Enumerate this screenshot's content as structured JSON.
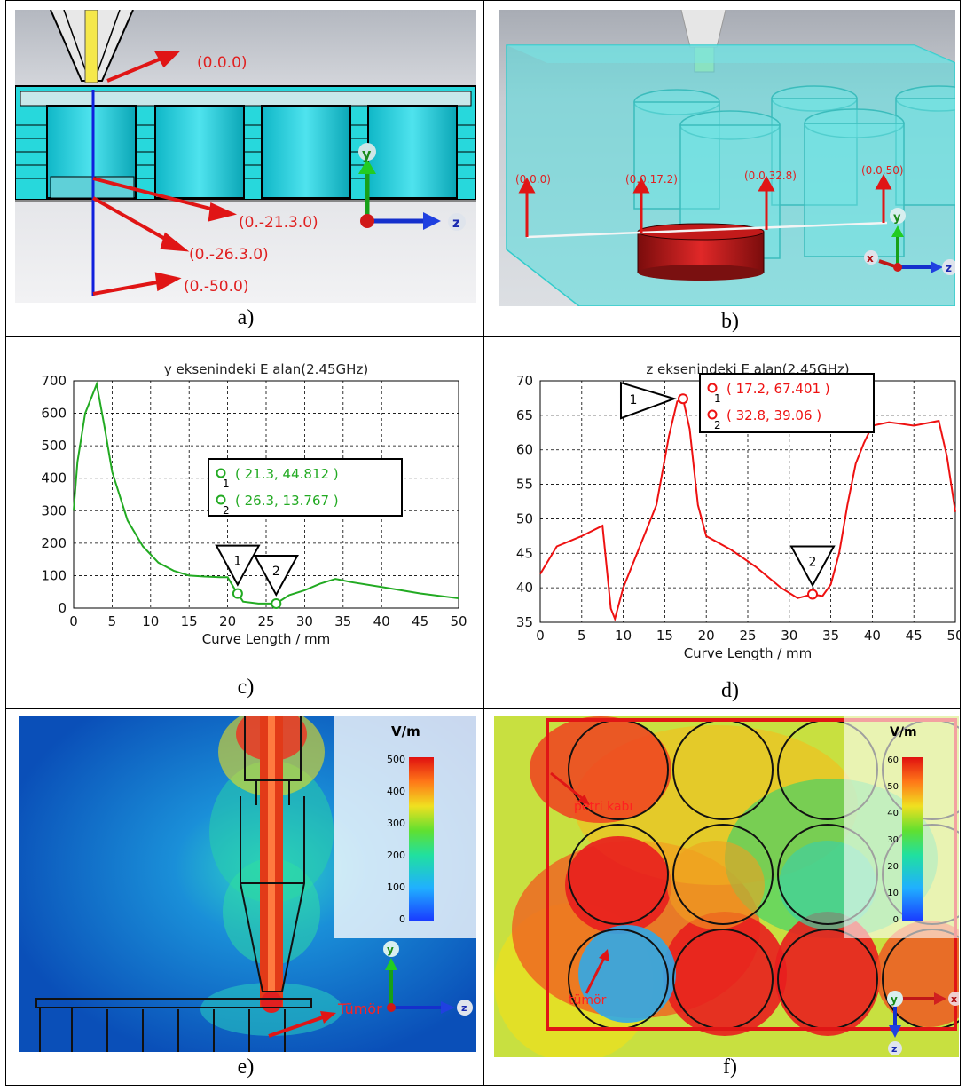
{
  "captions": {
    "a": "a)",
    "b": "b)",
    "c": "c)",
    "d": "d)",
    "e": "e)",
    "f": "f)"
  },
  "panel_a": {
    "coords": [
      "(0.0.0)",
      "(0.-21.3.0)",
      "(0.-26.3.0)",
      "(0.-50.0)"
    ],
    "axis_y": "y",
    "axis_z": "z"
  },
  "panel_b": {
    "coords": [
      "(0.0.0)",
      "(0.0.17.2)",
      "(0.0.32.8)",
      "(0.0.50)"
    ],
    "axis_y": "y",
    "axis_z": "z",
    "axis_x": "x"
  },
  "panel_e": {
    "unit": "V/m",
    "ticks": [
      "500",
      "400",
      "300",
      "200",
      "100",
      "0"
    ],
    "label": "Tümör",
    "axis_y": "y",
    "axis_z": "z"
  },
  "panel_f": {
    "unit": "V/m",
    "ticks": [
      "60",
      "50",
      "40",
      "30",
      "20",
      "10",
      "0"
    ],
    "label_petri": "petri kabı",
    "label_tumor": "tümör",
    "axis_y": "y",
    "axis_x": "x",
    "axis_z": "z"
  },
  "chart_data": [
    {
      "type": "line",
      "title": "y eksenindeki E alan(2.45GHz)",
      "xlabel": "Curve Length / mm",
      "ylabel": "",
      "xlim": [
        0,
        50
      ],
      "ylim": [
        0,
        700
      ],
      "xticks": [
        "0",
        "5",
        "10",
        "15",
        "20",
        "25",
        "30",
        "35",
        "40",
        "45",
        "50"
      ],
      "yticks": [
        "0",
        "100",
        "200",
        "300",
        "400",
        "500",
        "600",
        "700"
      ],
      "grid": true,
      "color": "#22aa22",
      "series": [
        {
          "x": [
            0,
            0.5,
            1.5,
            3,
            4,
            5,
            7,
            9,
            11,
            13,
            15,
            17,
            19,
            20,
            21,
            21.3,
            22,
            24,
            26,
            26.3,
            28,
            30,
            32,
            34,
            36,
            40,
            45,
            50
          ],
          "y": [
            300,
            450,
            600,
            690,
            560,
            420,
            270,
            190,
            140,
            115,
            100,
            97,
            95,
            95,
            55,
            45,
            20,
            14,
            14,
            14,
            40,
            55,
            75,
            90,
            80,
            65,
            45,
            30
          ]
        }
      ],
      "markers": [
        {
          "id": "1",
          "text": "( 21.3, 44.812 )",
          "x": 21.3,
          "y": 44.812
        },
        {
          "id": "2",
          "text": "( 26.3, 13.767 )",
          "x": 26.3,
          "y": 13.767
        }
      ],
      "marker_ids": [
        "1",
        "2"
      ]
    },
    {
      "type": "line",
      "title": "z eksenindeki E alan(2.45GHz)",
      "xlabel": "Curve Length / mm",
      "ylabel": "",
      "xlim": [
        0,
        50
      ],
      "ylim": [
        35,
        70
      ],
      "xticks": [
        "0",
        "5",
        "10",
        "15",
        "20",
        "25",
        "30",
        "35",
        "40",
        "45",
        "50"
      ],
      "yticks": [
        "35",
        "40",
        "45",
        "50",
        "55",
        "60",
        "65",
        "70"
      ],
      "grid": true,
      "color": "#ee1111",
      "series": [
        {
          "x": [
            0,
            2,
            5,
            7.5,
            8.5,
            9,
            10,
            12,
            14,
            15.5,
            16.5,
            17.2,
            18,
            19,
            20,
            23,
            26,
            29,
            31,
            32.8,
            34,
            35,
            36,
            37,
            38,
            39,
            40,
            42,
            45,
            48,
            49,
            50
          ],
          "y": [
            42,
            46,
            47.5,
            49,
            37,
            35.5,
            40,
            46,
            52,
            62,
            67,
            67.4,
            63,
            52,
            47.5,
            45.5,
            43,
            40,
            38.5,
            39.06,
            38.8,
            40.5,
            45,
            52,
            58,
            61,
            63.5,
            64,
            63.5,
            64.2,
            59,
            51
          ]
        }
      ],
      "markers": [
        {
          "id": "1",
          "text": "( 17.2, 67.401 )",
          "x": 17.2,
          "y": 67.401
        },
        {
          "id": "2",
          "text": "( 32.8, 39.06 )",
          "x": 32.8,
          "y": 39.06
        }
      ],
      "marker_ids": [
        "1",
        "2"
      ]
    }
  ]
}
